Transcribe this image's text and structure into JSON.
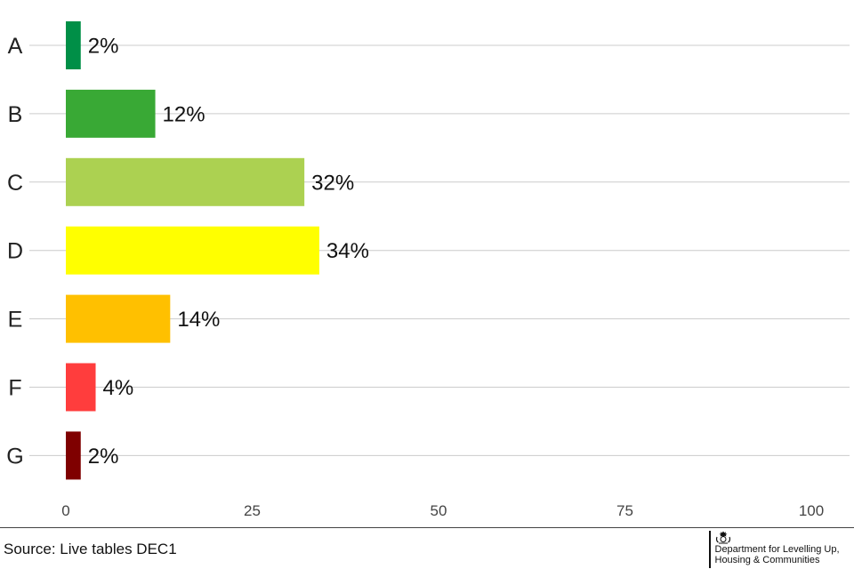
{
  "chart_data": {
    "type": "bar",
    "orientation": "horizontal",
    "categories": [
      "A",
      "B",
      "C",
      "D",
      "E",
      "F",
      "G"
    ],
    "values": [
      2,
      12,
      32,
      34,
      14,
      4,
      2
    ],
    "data_labels": [
      "2%",
      "12%",
      "32%",
      "34%",
      "14%",
      "4%",
      "2%"
    ],
    "colors": [
      "#008f47",
      "#39a935",
      "#acd151",
      "#ffff00",
      "#ffc000",
      "#ff3d3d",
      "#7f0000"
    ],
    "xlim": [
      0,
      100
    ],
    "xticks": [
      0,
      25,
      50,
      75,
      100
    ],
    "grid": "horizontal-lines-per-category",
    "title": "",
    "xlabel": "",
    "ylabel": ""
  },
  "footer": {
    "source": "Source: Live tables DEC1",
    "dept_line1": "Department for Levelling Up,",
    "dept_line2": "Housing & Communities"
  }
}
